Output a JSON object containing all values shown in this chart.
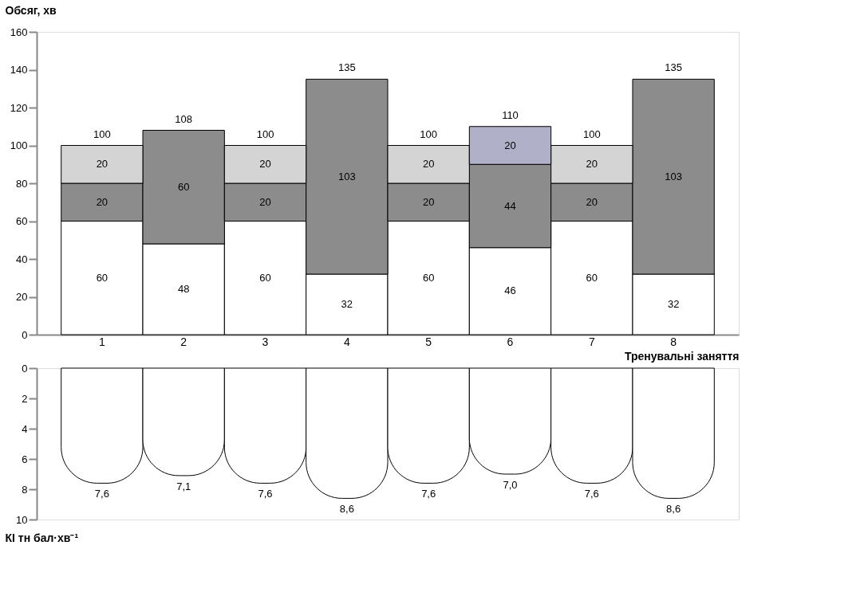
{
  "chart_data": [
    {
      "type": "bar",
      "stacked": true,
      "ylabel": "Обсяг, хв",
      "xlabel": "Тренувальні заняття",
      "categories": [
        "1",
        "2",
        "3",
        "4",
        "5",
        "6",
        "7",
        "8"
      ],
      "series": [
        {
          "color": "#ffffff",
          "values": [
            60,
            48,
            60,
            32,
            60,
            46,
            60,
            32
          ]
        },
        {
          "color": "#8c8c8c",
          "values": [
            20,
            60,
            20,
            103,
            20,
            44,
            20,
            103
          ]
        },
        {
          "color": "#d4d4d4",
          "values": [
            20,
            null,
            20,
            null,
            20,
            null,
            20,
            null
          ]
        },
        {
          "color": "#b0b0c8",
          "values": [
            null,
            null,
            null,
            null,
            null,
            20,
            null,
            null
          ]
        }
      ],
      "data_labels": true,
      "totals": [
        "100",
        "108",
        "100",
        "135",
        "100",
        "110",
        "100",
        "135"
      ],
      "ylim": [
        0,
        160
      ],
      "yticks": [
        0,
        20,
        40,
        60,
        80,
        100,
        120,
        140,
        160
      ],
      "grid": false,
      "legend": false
    },
    {
      "type": "bar",
      "ylabel": "КІ тн бал·хв⁻¹",
      "categories": [
        "1",
        "2",
        "3",
        "4",
        "5",
        "6",
        "7",
        "8"
      ],
      "series": [
        {
          "color": "#ffffff",
          "values": [
            7.6,
            7.1,
            7.6,
            8.6,
            7.6,
            7.0,
            7.6,
            8.6
          ]
        }
      ],
      "value_labels": [
        "7,6",
        "7,1",
        "7,6",
        "8,6",
        "7,6",
        "7,0",
        "7,6",
        "8,6"
      ],
      "ylim": [
        10,
        0
      ],
      "yticks": [
        0,
        2,
        4,
        6,
        8,
        10
      ],
      "tick_labels": "y",
      "grid": false,
      "legend": false
    }
  ]
}
